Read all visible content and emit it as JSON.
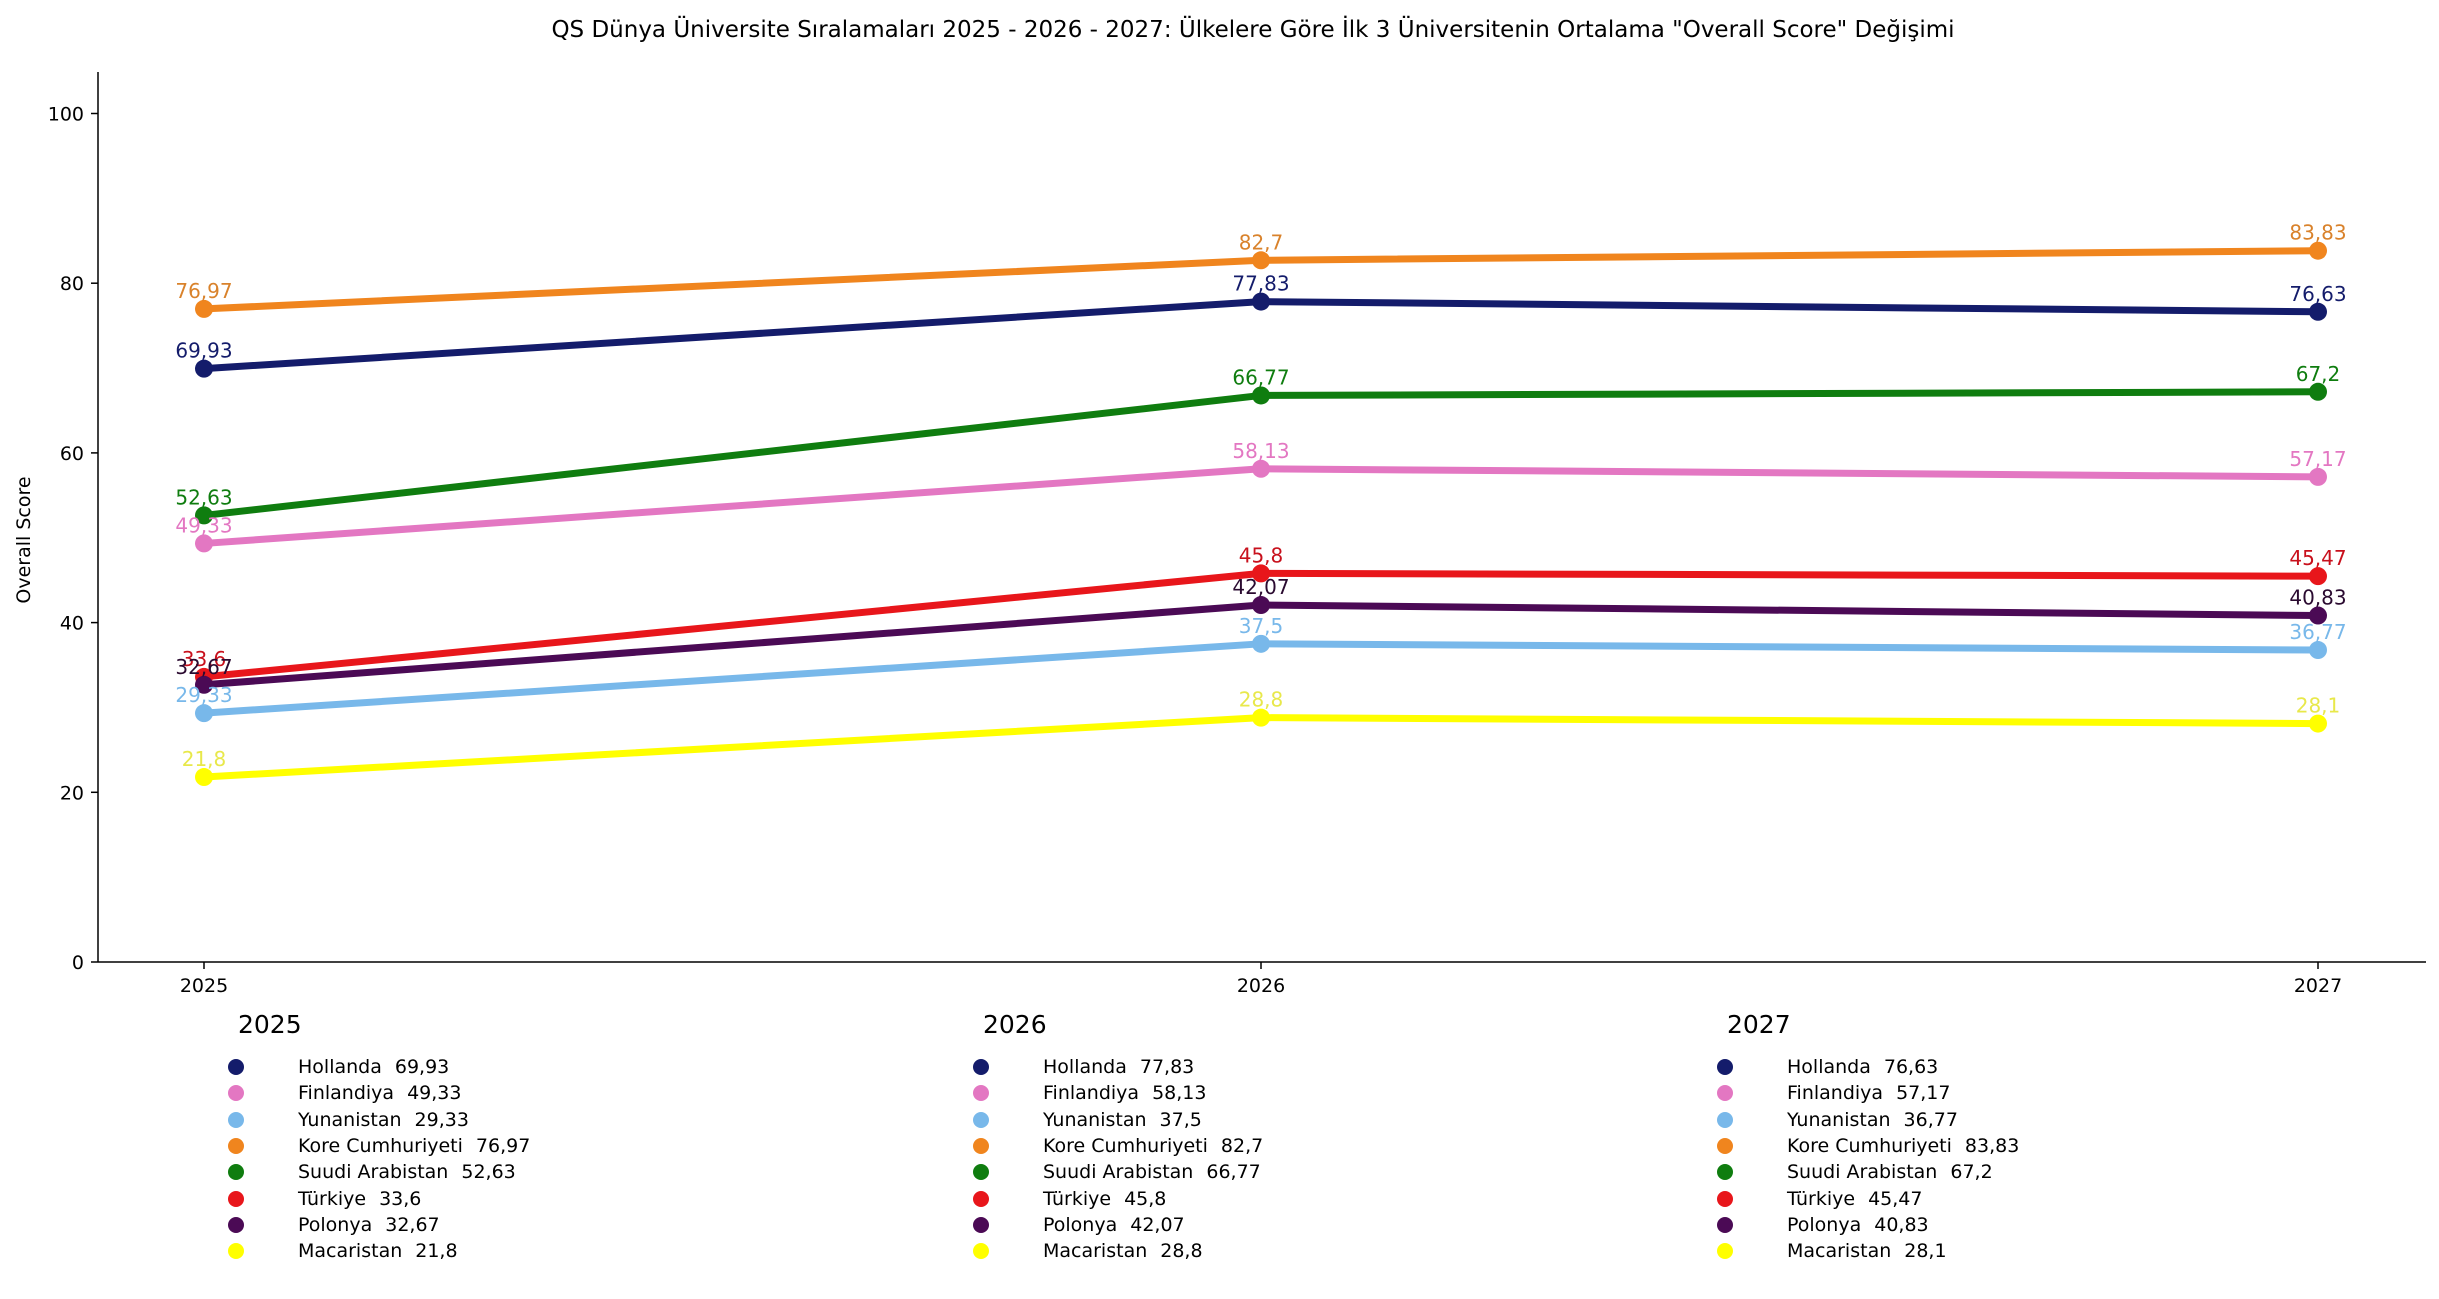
{
  "chart_data": {
    "type": "line",
    "title": "QS Dünya Üniversite Sıralamaları 2025 - 2026 - 2027: Ülkelere Göre İlk 3 Üniversitenin Ortalama \"Overall Score\" Değişimi",
    "xlabel": "",
    "ylabel": "Overall Score",
    "ylim": [
      0,
      105
    ],
    "yticks": [
      "0",
      "20",
      "40",
      "60",
      "80",
      "100"
    ],
    "categories": [
      "2025",
      "2026",
      "2027"
    ],
    "grid": false,
    "series": [
      {
        "name": "Hollanda",
        "color": "#141c6b",
        "values": [
          69.93,
          77.83,
          76.63
        ],
        "labels": [
          "69,93",
          "77,83",
          "76,63"
        ]
      },
      {
        "name": "Finlandiya",
        "color": "#e377c2",
        "values": [
          49.33,
          58.13,
          57.17
        ],
        "labels": [
          "49,33",
          "58,13",
          "57,17"
        ]
      },
      {
        "name": "Yunanistan",
        "color": "#78b8ea",
        "values": [
          29.33,
          37.5,
          36.77
        ],
        "labels": [
          "29,33",
          "37,5",
          "36,77"
        ]
      },
      {
        "name": "Kore Cumhuriyeti",
        "color": "#f0851e",
        "values": [
          76.97,
          82.7,
          83.83
        ],
        "labels": [
          "76,97",
          "82,7",
          "83,83"
        ]
      },
      {
        "name": "Suudi Arabistan",
        "color": "#0f7d0f",
        "values": [
          52.63,
          66.77,
          67.2
        ],
        "labels": [
          "52,63",
          "66,77",
          "67,2"
        ]
      },
      {
        "name": "Türkiye",
        "color": "#e8161b",
        "values": [
          33.6,
          45.8,
          45.47
        ],
        "labels": [
          "33,6",
          "45,8",
          "45,47"
        ]
      },
      {
        "name": "Polonya",
        "color": "#4b0a55",
        "values": [
          32.67,
          42.07,
          40.83
        ],
        "labels": [
          "32,67",
          "42,07",
          "40,83"
        ]
      },
      {
        "name": "Macaristan",
        "color": "#ffff00",
        "values": [
          21.8,
          28.8,
          28.1
        ],
        "labels": [
          "21,8",
          "28,8",
          "28,1"
        ]
      }
    ],
    "label_colors": {
      "Hollanda": "#141c6b",
      "Finlandiya": "#e377c2",
      "Yunanistan": "#78b8ea",
      "Kore Cumhuriyeti": "#d9822b",
      "Suudi Arabistan": "#0f7d0f",
      "Türkiye": "#c8101c",
      "Polonya": "#2a0a30",
      "Macaristan": "#e8e84a"
    },
    "legend_placement": "below"
  },
  "legend": {
    "years": [
      "2025",
      "2026",
      "2027"
    ]
  }
}
